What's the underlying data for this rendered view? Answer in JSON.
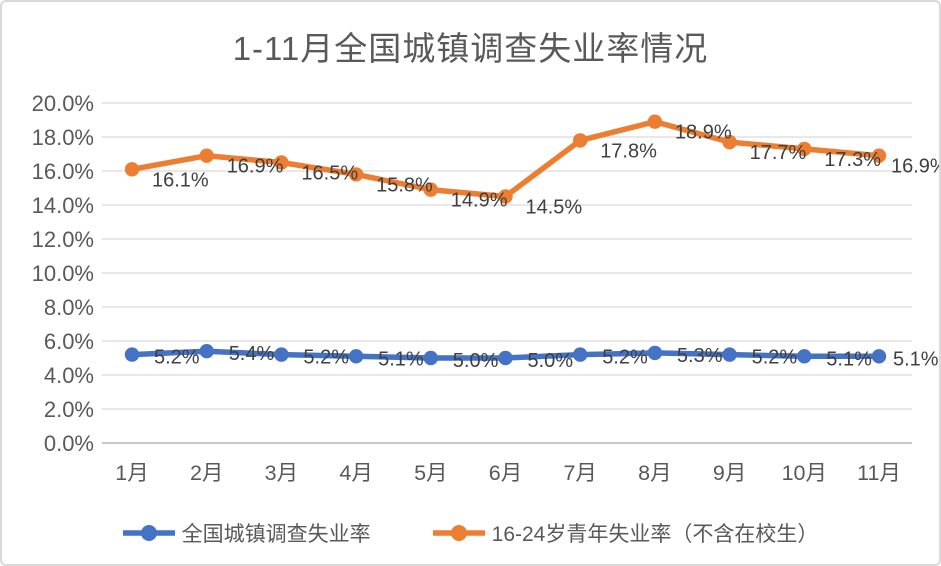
{
  "chart_data": {
    "type": "line",
    "title": "1-11月全国城镇调查失业率情况",
    "categories": [
      "1月",
      "2月",
      "3月",
      "4月",
      "5月",
      "6月",
      "7月",
      "8月",
      "9月",
      "10月",
      "11月"
    ],
    "xlabel": "",
    "ylabel": "",
    "y_axis": {
      "min": 0,
      "max": 20,
      "step": 2,
      "tick_labels": [
        "0.0%",
        "2.0%",
        "4.0%",
        "6.0%",
        "8.0%",
        "10.0%",
        "12.0%",
        "14.0%",
        "16.0%",
        "18.0%",
        "20.0%"
      ]
    },
    "grid": true,
    "legend_position": "bottom",
    "series": [
      {
        "name": "全国城镇调查失业率",
        "color": "#4472C4",
        "values": [
          5.2,
          5.4,
          5.2,
          5.1,
          5.0,
          5.0,
          5.2,
          5.3,
          5.2,
          5.1,
          5.1
        ],
        "data_labels": [
          "5.2%",
          "5.4%",
          "5.2%",
          "5.1%",
          "5.0%",
          "5.0%",
          "5.2%",
          "5.3%",
          "5.2%",
          "5.1%",
          "5.1%"
        ]
      },
      {
        "name": "16-24岁青年失业率（不含在校生）",
        "color": "#ED7D31",
        "values": [
          16.1,
          16.9,
          16.5,
          15.8,
          14.9,
          14.5,
          17.8,
          18.9,
          17.7,
          17.3,
          16.9
        ],
        "data_labels": [
          "16.1%",
          "16.9%",
          "16.5%",
          "15.8%",
          "14.9%",
          "14.5%",
          "17.8%",
          "18.9%",
          "17.7%",
          "17.3%",
          "16.9%"
        ]
      }
    ],
    "colors": {
      "gridline": "#D9D9D9",
      "axis_line": "#BFBFBF",
      "axis_text": "#595959",
      "data_label_text": "#404040"
    }
  }
}
